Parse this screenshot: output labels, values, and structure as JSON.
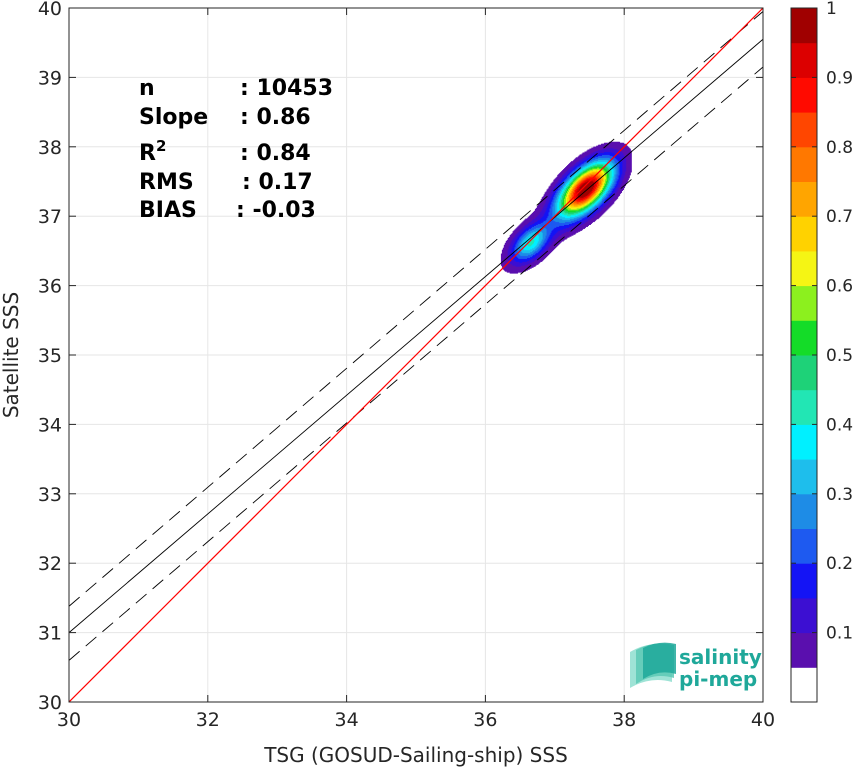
{
  "chart_data": {
    "type": "scatter",
    "subtype": "2D density contour with regression lines",
    "xlabel": "TSG (GOSUD-Sailing-ship) SSS",
    "ylabel": "Satellite SSS",
    "xlim": [
      30,
      40
    ],
    "ylim": [
      30,
      40
    ],
    "xticks": [
      "30",
      "32",
      "34",
      "36",
      "38",
      "40"
    ],
    "yticks": [
      "30",
      "31",
      "32",
      "33",
      "34",
      "35",
      "36",
      "37",
      "38",
      "39",
      "40"
    ],
    "grid": true,
    "stats": [
      {
        "label": "n",
        "value": ": 10453"
      },
      {
        "label": "Slope",
        "value": ": 0.86"
      },
      {
        "label": "R",
        "sup": "2",
        "value": ": 0.84"
      },
      {
        "label": "RMS",
        "value": ": 0.17"
      },
      {
        "label": "BIAS",
        "value": ": -0.03"
      }
    ],
    "lines": {
      "identity": {
        "x": [
          30,
          40
        ],
        "y": [
          30,
          40
        ],
        "color": "#ff0000"
      },
      "regression": {
        "x": [
          30,
          40
        ],
        "y": [
          31.0,
          39.55
        ],
        "color": "#000000"
      },
      "upper_band": {
        "x": [
          30,
          40
        ],
        "y": [
          31.38,
          39.95
        ],
        "color": "#000000",
        "style": "dashed"
      },
      "lower_band": {
        "x": [
          30,
          40
        ],
        "y": [
          30.6,
          39.15
        ],
        "color": "#000000",
        "style": "dashed"
      }
    },
    "density_peaks": [
      {
        "x": 37.45,
        "y": 37.4,
        "max": 1.0
      },
      {
        "x": 36.65,
        "y": 36.62,
        "max": 0.35
      }
    ],
    "colorbar": {
      "ticks": [
        "0.1",
        "0.2",
        "0.3",
        "0.4",
        "0.5",
        "0.6",
        "0.7",
        "0.8",
        "0.9",
        "1"
      ],
      "colors": [
        "#ffffff",
        "#5a0fae",
        "#3c0fd2",
        "#1414f5",
        "#1e5af0",
        "#1e8ce6",
        "#1ebeec",
        "#00f0ff",
        "#22e6b4",
        "#1ed278",
        "#14dc28",
        "#8cf01e",
        "#f5f514",
        "#ffd200",
        "#ffa500",
        "#ff7800",
        "#ff4600",
        "#ff0a00",
        "#dc0000",
        "#a00000"
      ]
    },
    "logo": {
      "line1": "salinity",
      "line2": "pi-mep"
    }
  }
}
